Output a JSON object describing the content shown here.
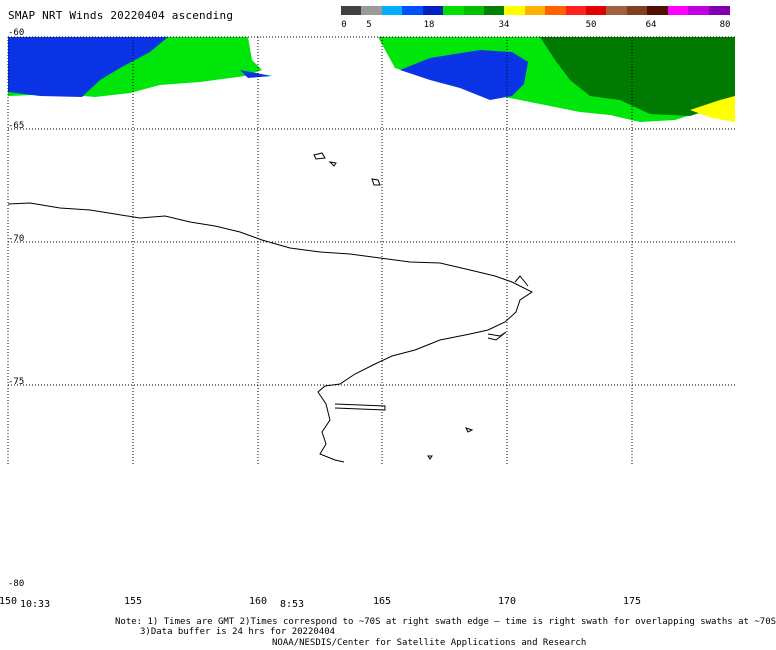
{
  "title": "SMAP NRT Winds 20220404 ascending",
  "colorbar": {
    "ticks": [
      "0",
      "5",
      "18",
      "34",
      "50",
      "64",
      "80"
    ],
    "segments": [
      "#404040",
      "#9a9a9a",
      "#00b0ff",
      "#0050ff",
      "#0020c0",
      "#00e000",
      "#00c000",
      "#008000",
      "#ffff00",
      "#ffb000",
      "#ff6000",
      "#ff2020",
      "#e00000",
      "#a06040",
      "#804020",
      "#501000",
      "#ff00ff",
      "#c000e0",
      "#8000b0"
    ]
  },
  "lat_labels": [
    "-60",
    "-65",
    "-70",
    "-75",
    "-80"
  ],
  "lon_labels": [
    "150",
    "155",
    "160",
    "165",
    "170",
    "175"
  ],
  "times": [
    "10:33",
    "8:53"
  ],
  "notes": {
    "line1": "Note: 1) Times are GMT 2)Times correspond to ~70S at right swath edge — time is right swath for overlapping swaths at ~70S",
    "line2": "3)Data buffer is 24 hrs for 20220404",
    "line3": "NOAA/NESDIS/Center for Satellite Applications and Research"
  },
  "colors": {
    "calm_blue": "#0a33e6",
    "moderate_green": "#00e60a",
    "strong_darkgreen": "#007a00",
    "gale_yellow": "#ffff00",
    "coastline": "#000000"
  }
}
